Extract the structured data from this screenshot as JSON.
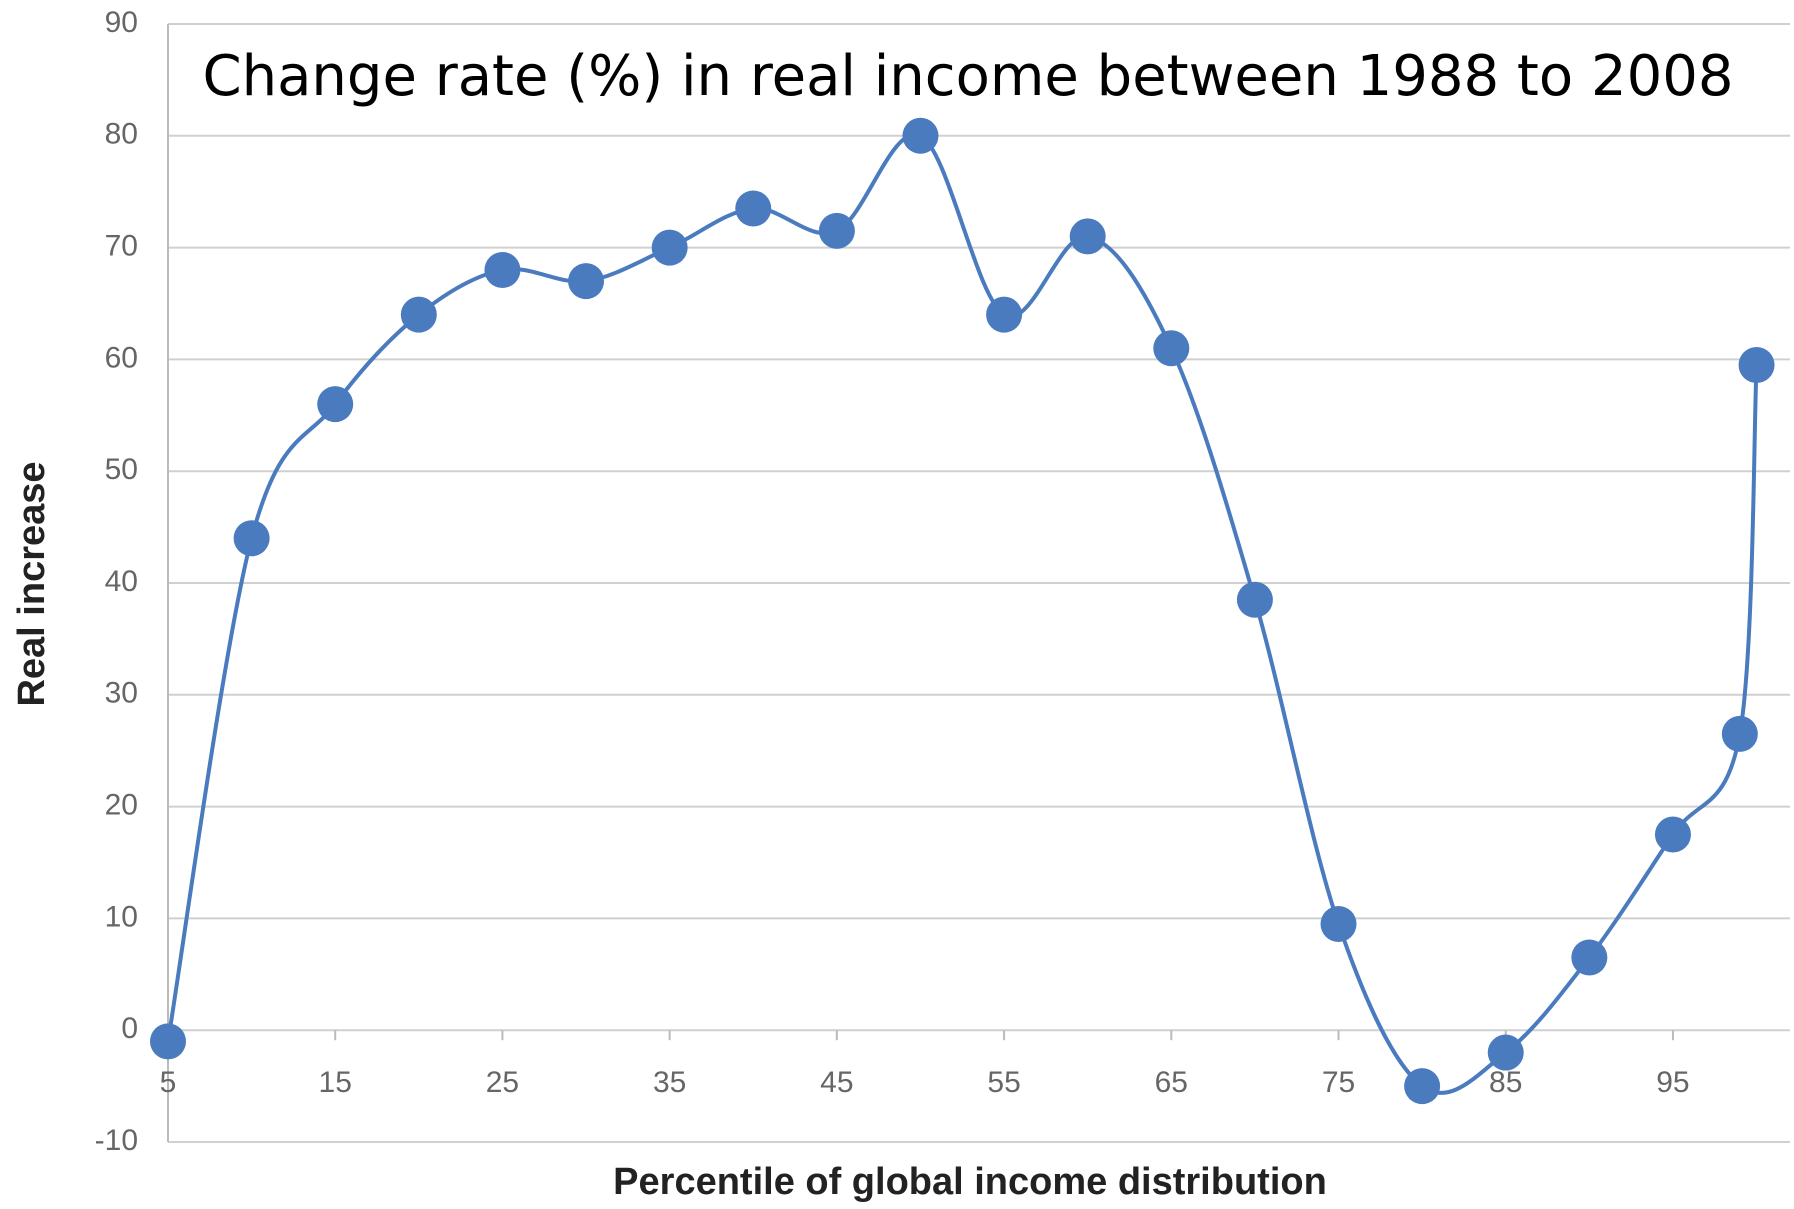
{
  "chart_data": {
    "type": "line",
    "title": "Change rate (%) in real income between 1988 to 2008",
    "x_label": "Percentile of global income distribution",
    "y_label": "Real increase",
    "x": [
      5,
      10,
      15,
      20,
      25,
      30,
      35,
      40,
      45,
      50,
      55,
      60,
      65,
      70,
      75,
      80,
      85,
      90,
      95,
      99,
      100
    ],
    "series": [
      {
        "name": "Real increase",
        "color": "#4a7bbf",
        "values": [
          -1,
          44,
          56,
          64,
          68,
          67,
          70,
          73.5,
          71.5,
          80,
          64,
          71,
          61,
          38.5,
          9.5,
          -5,
          -2,
          6.5,
          17.5,
          26.5,
          59.5
        ]
      }
    ],
    "xlim": [
      5,
      102
    ],
    "xticks": [
      5,
      15,
      25,
      35,
      45,
      55,
      65,
      75,
      85,
      95
    ],
    "ylim": [
      -10,
      90
    ],
    "yticks": [
      -10,
      0,
      10,
      20,
      30,
      40,
      50,
      60,
      70,
      80,
      90
    ],
    "grid": true
  }
}
